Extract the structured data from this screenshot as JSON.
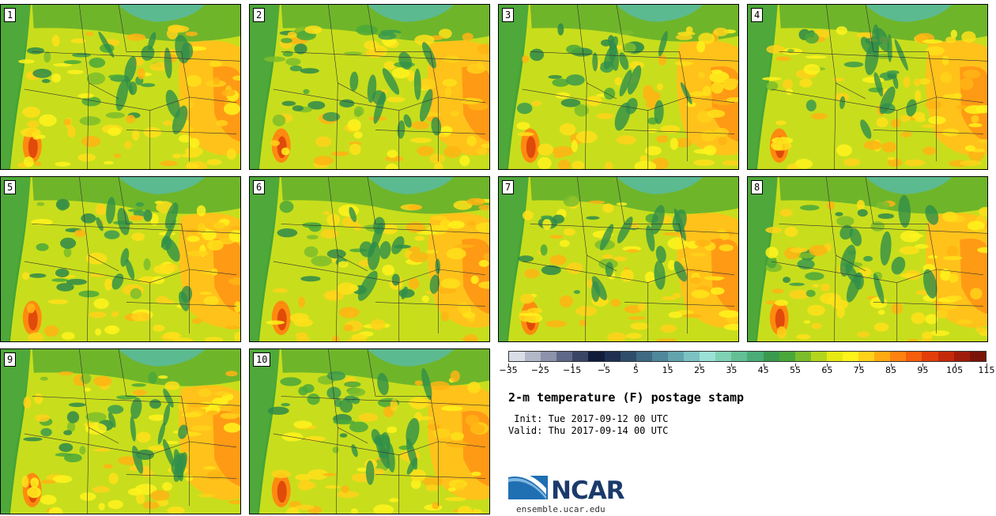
{
  "stamps": [
    {
      "label": "1"
    },
    {
      "label": "2"
    },
    {
      "label": "3"
    },
    {
      "label": "4"
    },
    {
      "label": "5"
    },
    {
      "label": "6"
    },
    {
      "label": "7"
    },
    {
      "label": "8"
    },
    {
      "label": "9"
    },
    {
      "label": "10"
    }
  ],
  "colorbar": {
    "colors": [
      "#d9dde6",
      "#b3b8c8",
      "#8c93aa",
      "#5f6886",
      "#3a4566",
      "#111c3a",
      "#1e2f52",
      "#2f4d6b",
      "#3e6a84",
      "#4f879b",
      "#63a3ae",
      "#7cc2c3",
      "#9be0d6",
      "#7fd2b4",
      "#63c096",
      "#4aad77",
      "#3a9a4e",
      "#4aa83a",
      "#7cbd2c",
      "#b4d51e",
      "#e6ea12",
      "#fff31c",
      "#ffd21a",
      "#ffaa12",
      "#ff8210",
      "#f45e0c",
      "#e23e0a",
      "#c42a0a",
      "#a01c0a",
      "#7a1408"
    ],
    "tick_labels": [
      "−35",
      "−25",
      "−15",
      "−5",
      "5",
      "15",
      "25",
      "35",
      "45",
      "55",
      "65",
      "75",
      "85",
      "95",
      "105",
      "115"
    ]
  },
  "title": "2-m temperature (F) postage stamp",
  "init_line": " Init: Tue 2017-09-12 00 UTC",
  "valid_line": "Valid: Thu 2017-09-14 00 UTC",
  "logo_text": "NCAR",
  "site_url": "ensemble.ucar.edu"
}
